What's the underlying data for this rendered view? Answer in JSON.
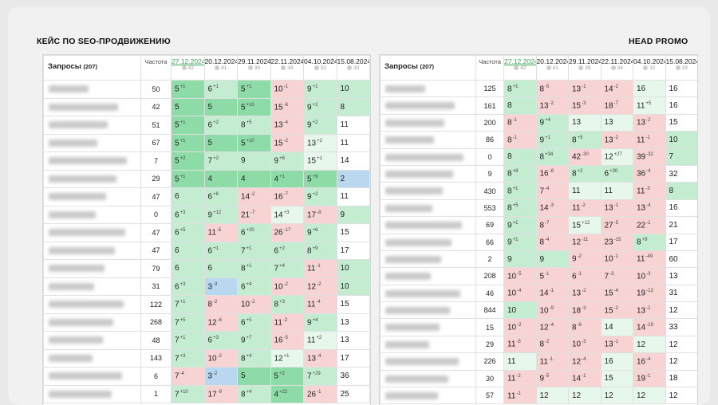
{
  "left": {
    "title": "КЕЙС ПО SEO-ПРОДВИЖЕНИЮ",
    "query_header": "Запросы",
    "query_count": "(207)",
    "freq_header": "Частота",
    "dates": [
      {
        "date": "27.12.2024",
        "count": 42
      },
      {
        "date": "20.12.2024",
        "count": 41
      },
      {
        "date": "29.11.2024",
        "count": 39
      },
      {
        "date": "22.11.2024",
        "count": 34
      },
      {
        "date": "04.10.2024",
        "count": 32
      },
      {
        "date": "15.08.2024",
        "count": 33
      }
    ],
    "rows": [
      {
        "freq": 50,
        "cells": [
          [
            5,
            "+1"
          ],
          [
            6,
            "+1"
          ],
          [
            5,
            "+1"
          ],
          [
            10,
            "-1"
          ],
          [
            9,
            "+1"
          ],
          [
            10
          ]
        ]
      },
      {
        "freq": 42,
        "cells": [
          [
            5
          ],
          [
            5
          ],
          [
            5,
            "+10"
          ],
          [
            15,
            "-6"
          ],
          [
            9,
            "+2"
          ],
          [
            8
          ]
        ]
      },
      {
        "freq": 51,
        "cells": [
          [
            5,
            "+1"
          ],
          [
            6,
            "+2"
          ],
          [
            8,
            "+5"
          ],
          [
            13,
            "-4"
          ],
          [
            9,
            "+2"
          ],
          [
            11
          ]
        ]
      },
      {
        "freq": 67,
        "cells": [
          [
            5,
            "+1"
          ],
          [
            5
          ],
          [
            5,
            "+10"
          ],
          [
            15,
            "-2"
          ],
          [
            13,
            "+2"
          ],
          [
            11
          ]
        ]
      },
      {
        "freq": 7,
        "cells": [
          [
            5,
            "+2"
          ],
          [
            7,
            "+2"
          ],
          [
            9
          ],
          [
            9,
            "+6"
          ],
          [
            15,
            "+1"
          ],
          [
            14
          ]
        ]
      },
      {
        "freq": 29,
        "cells": [
          [
            5,
            "+1"
          ],
          [
            4
          ],
          [
            4
          ],
          [
            4,
            "+1"
          ],
          [
            5,
            "+9"
          ],
          [
            2
          ]
        ]
      },
      {
        "freq": 47,
        "cells": [
          [
            6
          ],
          [
            6,
            "+8"
          ],
          [
            14,
            "-2"
          ],
          [
            16,
            "-7"
          ],
          [
            9,
            "+2"
          ],
          [
            11
          ]
        ]
      },
      {
        "freq": 0,
        "cells": [
          [
            6,
            "+3"
          ],
          [
            9,
            "+12"
          ],
          [
            21,
            "-7"
          ],
          [
            14,
            "+3"
          ],
          [
            17,
            "-8"
          ],
          [
            9
          ]
        ]
      },
      {
        "freq": 47,
        "cells": [
          [
            6,
            "+5"
          ],
          [
            11,
            "-5"
          ],
          [
            6,
            "+20"
          ],
          [
            26,
            "-17"
          ],
          [
            9,
            "+6"
          ],
          [
            15
          ]
        ]
      },
      {
        "freq": 47,
        "cells": [
          [
            6
          ],
          [
            6,
            "+1"
          ],
          [
            7,
            "+1"
          ],
          [
            6,
            "+2"
          ],
          [
            8,
            "+9"
          ],
          [
            17
          ]
        ]
      },
      {
        "freq": 79,
        "cells": [
          [
            6
          ],
          [
            6
          ],
          [
            8,
            "+1"
          ],
          [
            7,
            "+4"
          ],
          [
            11,
            "-1"
          ],
          [
            10
          ]
        ]
      },
      {
        "freq": 31,
        "cells": [
          [
            6,
            "+3"
          ],
          [
            3,
            "-3"
          ],
          [
            6,
            "+4"
          ],
          [
            10,
            "-2"
          ],
          [
            12,
            "-2"
          ],
          [
            10
          ]
        ]
      },
      {
        "freq": 122,
        "cells": [
          [
            7,
            "+1"
          ],
          [
            8,
            "-2"
          ],
          [
            10,
            "-2"
          ],
          [
            8,
            "+3"
          ],
          [
            11,
            "-4"
          ],
          [
            15
          ]
        ]
      },
      {
        "freq": 268,
        "cells": [
          [
            7,
            "+5"
          ],
          [
            12,
            "-6"
          ],
          [
            6,
            "+5"
          ],
          [
            11,
            "-2"
          ],
          [
            9,
            "+4"
          ],
          [
            13
          ]
        ]
      },
      {
        "freq": 48,
        "cells": [
          [
            7,
            "+1"
          ],
          [
            6,
            "+3"
          ],
          [
            9,
            "+7"
          ],
          [
            16,
            "-5"
          ],
          [
            11,
            "+2"
          ],
          [
            13
          ]
        ]
      },
      {
        "freq": 143,
        "cells": [
          [
            7,
            "+3"
          ],
          [
            10,
            "-2"
          ],
          [
            8,
            "+4"
          ],
          [
            12,
            "+1"
          ],
          [
            13,
            "-4"
          ],
          [
            17
          ]
        ]
      },
      {
        "freq": 6,
        "cells": [
          [
            7,
            "-4"
          ],
          [
            3,
            "-2"
          ],
          [
            5
          ],
          [
            5,
            "+2"
          ],
          [
            7,
            "+29"
          ],
          [
            36
          ]
        ]
      },
      {
        "freq": 1,
        "cells": [
          [
            7,
            "+10"
          ],
          [
            17,
            "-9"
          ],
          [
            8,
            "+4"
          ],
          [
            4,
            "+22"
          ],
          [
            26,
            "-1"
          ],
          [
            25
          ]
        ]
      }
    ]
  },
  "right": {
    "title": "HEAD PROMO",
    "query_header": "Запросы",
    "query_count": "(207)",
    "freq_header": "Частота",
    "dates": [
      {
        "date": "27.12.2024",
        "count": 42
      },
      {
        "date": "20.12.2024",
        "count": 41
      },
      {
        "date": "29.11.2024",
        "count": 39
      },
      {
        "date": "22.11.2024",
        "count": 34
      },
      {
        "date": "04.10.2024",
        "count": 32
      },
      {
        "date": "15.08.2024",
        "count": 33
      }
    ],
    "rows": [
      {
        "freq": 125,
        "cells": [
          [
            8,
            "+1"
          ],
          [
            8,
            "-5"
          ],
          [
            13,
            "-1"
          ],
          [
            14,
            "-2"
          ],
          [
            16
          ],
          [
            16
          ]
        ]
      },
      {
        "freq": 161,
        "cells": [
          [
            8
          ],
          [
            13,
            "-2"
          ],
          [
            15,
            "-3"
          ],
          [
            18,
            "-7"
          ],
          [
            11,
            "+5"
          ],
          [
            16
          ]
        ]
      },
      {
        "freq": 200,
        "cells": [
          [
            8,
            "-1"
          ],
          [
            9,
            "+4"
          ],
          [
            13
          ],
          [
            13
          ],
          [
            13,
            "-2"
          ],
          [
            15
          ]
        ]
      },
      {
        "freq": 86,
        "cells": [
          [
            8,
            "-1"
          ],
          [
            9,
            "+1"
          ],
          [
            8,
            "+5"
          ],
          [
            13,
            "-2"
          ],
          [
            11,
            "-1"
          ],
          [
            10
          ]
        ]
      },
      {
        "freq": 0,
        "cells": [
          [
            8
          ],
          [
            8,
            "+34"
          ],
          [
            42,
            "-30"
          ],
          [
            12,
            "+27"
          ],
          [
            39,
            "-32"
          ],
          [
            7
          ]
        ]
      },
      {
        "freq": 9,
        "cells": [
          [
            8,
            "+8"
          ],
          [
            16,
            "-8"
          ],
          [
            8,
            "+2"
          ],
          [
            6,
            "+30"
          ],
          [
            36,
            "-4"
          ],
          [
            32
          ]
        ]
      },
      {
        "freq": 430,
        "cells": [
          [
            8,
            "+1"
          ],
          [
            7,
            "-4"
          ],
          [
            11
          ],
          [
            11
          ],
          [
            11,
            "-3"
          ],
          [
            8
          ]
        ]
      },
      {
        "freq": 553,
        "cells": [
          [
            8,
            "+5"
          ],
          [
            14,
            "-3"
          ],
          [
            11,
            "-2"
          ],
          [
            13,
            "-1"
          ],
          [
            13,
            "-4"
          ],
          [
            16
          ]
        ]
      },
      {
        "freq": 69,
        "cells": [
          [
            9,
            "+1"
          ],
          [
            8,
            "-7"
          ],
          [
            15,
            "+12"
          ],
          [
            27,
            "-5"
          ],
          [
            22,
            "-1"
          ],
          [
            21
          ]
        ]
      },
      {
        "freq": 66,
        "cells": [
          [
            9,
            "+1"
          ],
          [
            8,
            "-4"
          ],
          [
            12,
            "-11"
          ],
          [
            23,
            "-15"
          ],
          [
            8,
            "+9"
          ],
          [
            17
          ]
        ]
      },
      {
        "freq": 2,
        "cells": [
          [
            9
          ],
          [
            9
          ],
          [
            9,
            "-2"
          ],
          [
            10,
            "-1"
          ],
          [
            11,
            "-49"
          ],
          [
            60
          ]
        ]
      },
      {
        "freq": 208,
        "cells": [
          [
            10,
            "-5"
          ],
          [
            5,
            "-1"
          ],
          [
            6,
            "-1"
          ],
          [
            7,
            "-3"
          ],
          [
            10,
            "-3"
          ],
          [
            13
          ]
        ]
      },
      {
        "freq": 46,
        "cells": [
          [
            10,
            "-4"
          ],
          [
            14,
            "-1"
          ],
          [
            13,
            "-2"
          ],
          [
            15,
            "-4"
          ],
          [
            19,
            "-12"
          ],
          [
            31
          ]
        ]
      },
      {
        "freq": 844,
        "cells": [
          [
            10
          ],
          [
            10,
            "-9"
          ],
          [
            18,
            "-3"
          ],
          [
            15,
            "-2"
          ],
          [
            13,
            "-1"
          ],
          [
            12
          ]
        ]
      },
      {
        "freq": 15,
        "cells": [
          [
            10,
            "-2"
          ],
          [
            12,
            "-4"
          ],
          [
            8,
            "-6"
          ],
          [
            14
          ],
          [
            14,
            "-19"
          ],
          [
            33
          ]
        ]
      },
      {
        "freq": 29,
        "cells": [
          [
            11,
            "-5"
          ],
          [
            8,
            "-2"
          ],
          [
            10,
            "-3"
          ],
          [
            13,
            "-1"
          ],
          [
            12
          ],
          [
            12
          ]
        ]
      },
      {
        "freq": 226,
        "cells": [
          [
            11
          ],
          [
            11,
            "-1"
          ],
          [
            12,
            "-4"
          ],
          [
            16
          ],
          [
            16,
            "-4"
          ],
          [
            12
          ]
        ]
      },
      {
        "freq": 30,
        "cells": [
          [
            11,
            "-2"
          ],
          [
            9,
            "-5"
          ],
          [
            14,
            "-1"
          ],
          [
            15
          ],
          [
            19,
            "-1"
          ],
          [
            18
          ]
        ]
      },
      {
        "freq": 57,
        "cells": [
          [
            11,
            "-1"
          ],
          [
            12
          ],
          [
            12
          ],
          [
            12
          ],
          [
            12
          ],
          [
            12
          ]
        ]
      }
    ]
  }
}
